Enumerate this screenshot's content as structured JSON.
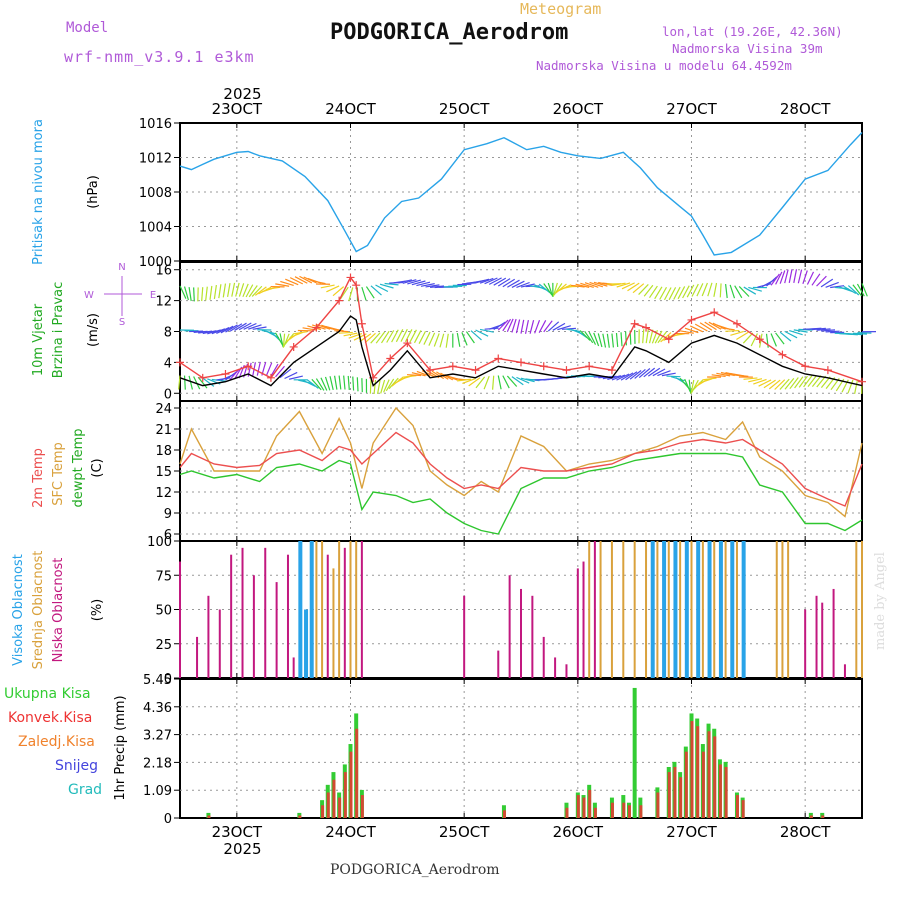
{
  "header": {
    "model_label": "Model",
    "model_name": "wrf-nmm_v3.9.1 e3km",
    "chart_kind": "Meteogram",
    "station": "PODGORICA_Aerodrom",
    "lonlat": "lon,lat (19.26E, 42.36N)",
    "elevation": "Nadmorska Visina 39m",
    "model_elevation": "Nadmorska Visina u modelu 64.4592m"
  },
  "footer": {
    "station": "PODGORICA_Aerodrom",
    "credit": "made by Angel"
  },
  "colors": {
    "pressure": "#29a3e8",
    "temp2m": "#ec4f4f",
    "sfc": "#d9a13c",
    "dew": "#2ec62e",
    "high_cloud": "#29a3e8",
    "mid_cloud": "#d9a13c",
    "low_cloud": "#c2187f",
    "total_precip": "#33cc33",
    "conv_precip": "#ee3333",
    "frz_precip": "#f0822c",
    "snow": "#4444dd",
    "hail": "#22bbbb",
    "wind_speed": "#000000",
    "gust": "#ee4444",
    "label_purple": "#b05ad8"
  },
  "chart_data": [
    {
      "id": "pressure",
      "type": "line",
      "ylabels": [
        "Pritisak na nivou mora",
        "(hPa)"
      ],
      "ylim": [
        1000,
        1016
      ],
      "yticks": [
        "1000",
        "1004",
        "1008",
        "1012",
        "1016"
      ],
      "x_top_year": "2025",
      "day_labels": [
        "23OCT",
        "24OCT",
        "25OCT",
        "26OCT",
        "27OCT",
        "28OCT"
      ],
      "x_bottom_year": "2025",
      "x_range_days": [
        22.5,
        28.5
      ],
      "series": [
        {
          "name": "Sea level pressure",
          "x": [
            22.5,
            22.6,
            22.7,
            22.8,
            23.0,
            23.1,
            23.2,
            23.4,
            23.6,
            23.8,
            23.95,
            24.05,
            24.15,
            24.3,
            24.45,
            24.6,
            24.8,
            25.0,
            25.2,
            25.35,
            25.55,
            25.7,
            25.85,
            26.0,
            26.2,
            26.4,
            26.55,
            26.7,
            26.9,
            27.0,
            27.1,
            27.2,
            27.35,
            27.6,
            27.8,
            28.0,
            28.2,
            28.4,
            28.5
          ],
          "values": [
            1011.0,
            1010.6,
            1011.2,
            1011.8,
            1012.6,
            1012.7,
            1012.2,
            1011.6,
            1009.8,
            1007.0,
            1003.5,
            1001.1,
            1001.8,
            1005.0,
            1006.9,
            1007.3,
            1009.5,
            1012.9,
            1013.6,
            1014.3,
            1012.9,
            1013.3,
            1012.6,
            1012.2,
            1011.9,
            1012.6,
            1010.8,
            1008.5,
            1006.3,
            1005.2,
            1003.0,
            1000.7,
            1001.0,
            1003.0,
            1006.2,
            1009.5,
            1010.5,
            1013.5,
            1014.9
          ]
        }
      ]
    },
    {
      "id": "wind",
      "type": "line",
      "ylabels": [
        "10m Vjetar",
        "Brzina i Pravac",
        "(m/s)"
      ],
      "compass": [
        "N",
        "E",
        "S",
        "W"
      ],
      "ylim": [
        -1,
        17
      ],
      "yticks": [
        "0",
        "4",
        "8",
        "12",
        "16"
      ],
      "series": [
        {
          "name": "Wind speed",
          "x": [
            22.5,
            22.7,
            22.9,
            23.1,
            23.3,
            23.5,
            23.7,
            23.9,
            24.0,
            24.05,
            24.1,
            24.2,
            24.35,
            24.5,
            24.7,
            24.9,
            25.1,
            25.3,
            25.5,
            25.7,
            25.9,
            26.1,
            26.3,
            26.5,
            26.6,
            26.8,
            27.0,
            27.2,
            27.4,
            27.6,
            27.8,
            28.0,
            28.2,
            28.5
          ],
          "values": [
            2.0,
            1.0,
            1.5,
            2.5,
            1.0,
            4.0,
            6.0,
            8.0,
            10.0,
            9.5,
            6.0,
            1.0,
            3.0,
            5.5,
            2.0,
            2.5,
            2.0,
            3.5,
            3.0,
            2.5,
            2.0,
            2.5,
            2.0,
            6.0,
            5.5,
            4.0,
            6.5,
            7.5,
            6.5,
            5.0,
            3.5,
            2.5,
            2.0,
            1.0
          ]
        },
        {
          "name": "Wind gust",
          "x": [
            22.5,
            22.7,
            22.9,
            23.1,
            23.3,
            23.5,
            23.7,
            23.9,
            24.0,
            24.05,
            24.1,
            24.2,
            24.35,
            24.5,
            24.7,
            24.9,
            25.1,
            25.3,
            25.5,
            25.7,
            25.9,
            26.1,
            26.3,
            26.5,
            26.6,
            26.8,
            27.0,
            27.2,
            27.4,
            27.6,
            27.8,
            28.0,
            28.2,
            28.5
          ],
          "values": [
            4.0,
            2.0,
            2.5,
            3.5,
            2.0,
            6.0,
            8.5,
            12.0,
            15.0,
            14.0,
            9.0,
            2.0,
            4.5,
            6.5,
            3.0,
            3.5,
            3.0,
            4.5,
            4.0,
            3.5,
            3.0,
            3.5,
            3.0,
            9.0,
            8.5,
            7.0,
            9.5,
            10.5,
            9.0,
            7.0,
            5.0,
            3.5,
            3.0,
            1.5
          ]
        }
      ],
      "direction_rows": [
        2,
        8,
        14
      ]
    },
    {
      "id": "temperature",
      "type": "line",
      "ylabels": [
        "2m Temp",
        "SFC Temp",
        "dewpt Temp",
        "(C)"
      ],
      "ylim": [
        5,
        25
      ],
      "yticks": [
        "6",
        "9",
        "12",
        "15",
        "18",
        "21",
        "24"
      ],
      "series": [
        {
          "name": "2m Temp",
          "x": [
            22.5,
            22.6,
            22.8,
            23.0,
            23.2,
            23.35,
            23.55,
            23.75,
            23.9,
            24.0,
            24.1,
            24.2,
            24.4,
            24.55,
            24.7,
            24.85,
            25.0,
            25.15,
            25.3,
            25.5,
            25.7,
            25.9,
            26.1,
            26.3,
            26.5,
            26.7,
            26.9,
            27.1,
            27.3,
            27.45,
            27.6,
            27.8,
            28.0,
            28.2,
            28.35,
            28.5
          ],
          "values": [
            15.5,
            17.5,
            16.0,
            15.5,
            15.8,
            17.5,
            18.0,
            16.5,
            18.5,
            18.0,
            16.0,
            17.5,
            20.5,
            19.0,
            16.0,
            14.0,
            12.5,
            13.0,
            12.5,
            15.5,
            15.0,
            15.0,
            15.5,
            16.0,
            17.5,
            18.0,
            19.0,
            19.5,
            19.0,
            19.5,
            18.0,
            16.0,
            12.5,
            11.0,
            10.0,
            16.0
          ]
        },
        {
          "name": "SFC Temp",
          "x": [
            22.5,
            22.6,
            22.8,
            23.0,
            23.2,
            23.35,
            23.55,
            23.75,
            23.9,
            24.0,
            24.1,
            24.2,
            24.4,
            24.55,
            24.7,
            24.85,
            25.0,
            25.15,
            25.3,
            25.5,
            25.7,
            25.9,
            26.1,
            26.3,
            26.5,
            26.7,
            26.9,
            27.1,
            27.3,
            27.45,
            27.6,
            27.8,
            28.0,
            28.2,
            28.35,
            28.5
          ],
          "values": [
            16.0,
            21.0,
            15.0,
            15.0,
            15.0,
            20.0,
            23.5,
            17.5,
            22.5,
            19.0,
            12.5,
            19.0,
            24.0,
            21.5,
            15.0,
            13.0,
            11.5,
            13.5,
            12.0,
            20.0,
            18.5,
            15.0,
            16.0,
            16.5,
            17.5,
            18.5,
            20.0,
            20.5,
            19.5,
            22.0,
            17.0,
            15.0,
            11.5,
            10.5,
            8.5,
            19.0
          ]
        },
        {
          "name": "dewpt Temp",
          "x": [
            22.5,
            22.6,
            22.8,
            23.0,
            23.2,
            23.35,
            23.55,
            23.75,
            23.9,
            24.0,
            24.1,
            24.2,
            24.4,
            24.55,
            24.7,
            24.85,
            25.0,
            25.15,
            25.3,
            25.5,
            25.7,
            25.9,
            26.1,
            26.3,
            26.5,
            26.7,
            26.9,
            27.1,
            27.3,
            27.45,
            27.6,
            27.8,
            28.0,
            28.2,
            28.35,
            28.5
          ],
          "values": [
            14.5,
            15.0,
            14.0,
            14.5,
            13.5,
            15.5,
            16.0,
            15.0,
            16.5,
            16.0,
            9.5,
            12.0,
            11.5,
            10.5,
            11.0,
            9.0,
            7.5,
            6.5,
            6.0,
            12.5,
            14.0,
            14.0,
            15.0,
            15.5,
            16.5,
            17.0,
            17.5,
            17.5,
            17.5,
            17.0,
            13.0,
            12.0,
            7.5,
            7.5,
            6.5,
            8.0
          ]
        }
      ]
    },
    {
      "id": "clouds",
      "type": "bar",
      "ylabels": [
        "Visoka Oblacnost",
        "Srednja Oblacnost",
        "Niska Oblacnost",
        "(%)"
      ],
      "ylim": [
        0,
        100
      ],
      "yticks": [
        "0",
        "25",
        "50",
        "75",
        "100"
      ],
      "series": [
        {
          "name": "Visoka Oblacnost",
          "x": [
            23.55,
            23.6,
            23.65,
            26.65,
            26.75,
            26.85,
            26.95,
            27.05,
            27.15,
            27.25,
            27.35,
            27.45
          ],
          "values": [
            100,
            50,
            100,
            100,
            100,
            100,
            100,
            100,
            100,
            100,
            100,
            100
          ]
        },
        {
          "name": "Srednja Oblacnost",
          "x": [
            23.7,
            23.75,
            23.85,
            23.9,
            24.0,
            24.05,
            26.1,
            26.2,
            26.3,
            26.4,
            26.5,
            26.6,
            26.7,
            26.8,
            26.9,
            27.0,
            27.1,
            27.2,
            27.3,
            27.4,
            27.75,
            27.8,
            27.85,
            28.45,
            28.5
          ],
          "values": [
            100,
            100,
            80,
            100,
            100,
            100,
            100,
            100,
            100,
            100,
            100,
            100,
            100,
            100,
            100,
            100,
            100,
            100,
            100,
            100,
            100,
            100,
            100,
            100,
            100
          ]
        },
        {
          "name": "Niska Oblacnost",
          "x": [
            22.5,
            22.65,
            22.75,
            22.85,
            22.95,
            23.05,
            23.15,
            23.25,
            23.35,
            23.45,
            23.5,
            23.8,
            23.95,
            24.1,
            25.0,
            25.3,
            25.4,
            25.5,
            25.6,
            25.7,
            25.8,
            25.9,
            26.0,
            26.05,
            26.15,
            28.0,
            28.1,
            28.15,
            28.25,
            28.35
          ],
          "values": [
            85,
            30,
            60,
            50,
            90,
            95,
            75,
            95,
            70,
            90,
            15,
            90,
            95,
            100,
            60,
            20,
            75,
            65,
            60,
            30,
            15,
            10,
            80,
            85,
            100,
            50,
            60,
            55,
            65,
            10
          ]
        }
      ]
    },
    {
      "id": "precip",
      "type": "bar",
      "ylabels": [
        "1hr Precip (mm)"
      ],
      "legend": [
        "Ukupna Kisa",
        "Konvek.Kisa",
        "Zaledj.Kisa",
        "Snijeg",
        "Grad"
      ],
      "ylim": [
        0,
        5.45
      ],
      "yticks": [
        "0",
        "1.09",
        "2.18",
        "3.27",
        "4.36",
        "5.45"
      ],
      "series": [
        {
          "name": "Ukupna Kisa",
          "x": [
            22.75,
            23.55,
            23.75,
            23.8,
            23.85,
            23.9,
            23.95,
            24.0,
            24.05,
            24.1,
            25.35,
            25.9,
            26.0,
            26.05,
            26.1,
            26.15,
            26.3,
            26.4,
            26.45,
            26.5,
            26.55,
            26.7,
            26.8,
            26.85,
            26.9,
            26.95,
            27.0,
            27.05,
            27.1,
            27.15,
            27.2,
            27.25,
            27.3,
            27.4,
            27.45,
            28.05,
            28.15
          ],
          "values": [
            0.2,
            0.2,
            0.7,
            1.3,
            1.8,
            1.0,
            2.1,
            2.9,
            4.1,
            1.1,
            0.5,
            0.6,
            1.0,
            0.9,
            1.3,
            0.6,
            0.8,
            0.9,
            0.6,
            5.1,
            0.8,
            1.2,
            2.0,
            2.2,
            1.8,
            2.8,
            4.1,
            3.9,
            2.9,
            3.7,
            3.5,
            2.3,
            2.2,
            1.0,
            0.8,
            0.2,
            0.2
          ]
        },
        {
          "name": "Konvek.Kisa",
          "x": [
            22.75,
            23.55,
            23.75,
            23.8,
            23.85,
            23.9,
            23.95,
            24.0,
            24.05,
            24.1,
            25.35,
            25.9,
            26.0,
            26.05,
            26.1,
            26.15,
            26.3,
            26.4,
            26.45,
            26.5,
            26.55,
            26.7,
            26.8,
            26.85,
            26.9,
            26.95,
            27.0,
            27.05,
            27.1,
            27.15,
            27.2,
            27.25,
            27.3,
            27.4,
            27.45,
            28.05,
            28.15
          ],
          "values": [
            0.1,
            0.1,
            0.5,
            1.0,
            1.5,
            0.8,
            1.8,
            2.6,
            3.5,
            0.9,
            0.3,
            0.4,
            0.9,
            0.8,
            1.1,
            0.4,
            0.6,
            0.6,
            0.5,
            0.0,
            0.5,
            1.0,
            1.8,
            2.0,
            1.6,
            2.6,
            3.8,
            3.6,
            2.6,
            3.4,
            3.2,
            2.1,
            2.0,
            0.9,
            0.7,
            0.1,
            0.1
          ]
        }
      ]
    }
  ]
}
